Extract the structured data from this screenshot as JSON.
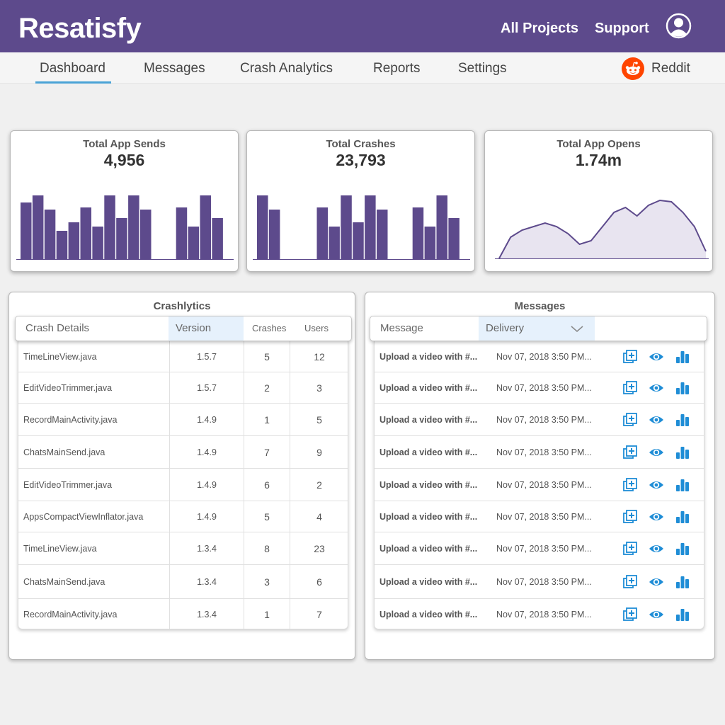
{
  "header": {
    "brand": "Resatisfy",
    "links": [
      "All Projects",
      "Support"
    ]
  },
  "nav": {
    "tabs": [
      "Dashboard",
      "Messages",
      "Crash Analytics",
      "Reports",
      "Settings"
    ],
    "active": "Dashboard",
    "integration": "Reddit"
  },
  "stats": [
    {
      "title": "Total App Sends",
      "value": "4,956"
    },
    {
      "title": "Total Crashes",
      "value": "23,793"
    },
    {
      "title": "Total App Opens",
      "value": "1.74m"
    }
  ],
  "crashlytics": {
    "title": "Crashlytics",
    "columns": [
      "Crash Details",
      "Version",
      "Crashes",
      "Users"
    ],
    "rows": [
      [
        "TimeLineView.java",
        "1.5.7",
        "5",
        "12"
      ],
      [
        "EditVideoTrimmer.java",
        "1.5.7",
        "2",
        "3"
      ],
      [
        "RecordMainActivity.java",
        "1.4.9",
        "1",
        "5"
      ],
      [
        "ChatsMainSend.java",
        "1.4.9",
        "7",
        "9"
      ],
      [
        "EditVideoTrimmer.java",
        "1.4.9",
        "6",
        "2"
      ],
      [
        "AppsCompactViewInflator.java",
        "1.4.9",
        "5",
        "4"
      ],
      [
        "TimeLineView.java",
        "1.3.4",
        "8",
        "23"
      ],
      [
        "ChatsMainSend.java",
        "1.3.4",
        "3",
        "6"
      ],
      [
        "RecordMainActivity.java",
        "1.3.4",
        "1",
        "7"
      ]
    ]
  },
  "messages": {
    "title": "Messages",
    "columns": [
      "Message",
      "Delivery"
    ],
    "rows": [
      [
        "Upload a video with #...",
        "Nov 07, 2018 3:50 PM..."
      ],
      [
        "Upload a video with #...",
        "Nov 07, 2018 3:50 PM..."
      ],
      [
        "Upload a video with #...",
        "Nov 07, 2018 3:50 PM..."
      ],
      [
        "Upload a video with #...",
        "Nov 07, 2018 3:50 PM..."
      ],
      [
        "Upload a video with #...",
        "Nov 07, 2018 3:50 PM..."
      ],
      [
        "Upload a video with #...",
        "Nov 07, 2018 3:50 PM..."
      ],
      [
        "Upload a video with #...",
        "Nov 07, 2018 3:50 PM..."
      ],
      [
        "Upload a video with #...",
        "Nov 07, 2018 3:50 PM..."
      ],
      [
        "Upload a video with #...",
        "Nov 07, 2018 3:50 PM..."
      ]
    ],
    "row_actions": [
      "add-copy-icon",
      "eye-icon",
      "bar-chart-icon"
    ]
  },
  "chart_data": [
    {
      "type": "bar",
      "title": "Total App Sends",
      "values": [
        80,
        90,
        70,
        40,
        52,
        73,
        46,
        90,
        58,
        90,
        70,
        0,
        0,
        73,
        46,
        90,
        58
      ],
      "ylim": [
        0,
        100
      ]
    },
    {
      "type": "bar",
      "title": "Total Crashes",
      "values": [
        90,
        70,
        0,
        0,
        0,
        73,
        46,
        90,
        52,
        90,
        70,
        0,
        0,
        73,
        46,
        90,
        58
      ],
      "ylim": [
        0,
        100
      ]
    },
    {
      "type": "area",
      "title": "Total App Opens",
      "values": [
        0,
        30,
        40,
        45,
        50,
        45,
        35,
        20,
        25,
        45,
        65,
        72,
        60,
        75,
        82,
        80,
        65,
        45,
        10
      ],
      "ylim": [
        0,
        100
      ]
    }
  ],
  "colors": {
    "header": "#5d4a8c",
    "bar": "#5d4a8c",
    "area": "#e8e4f0",
    "accent": "#4aa3d6",
    "icon": "#1f8dd6"
  }
}
